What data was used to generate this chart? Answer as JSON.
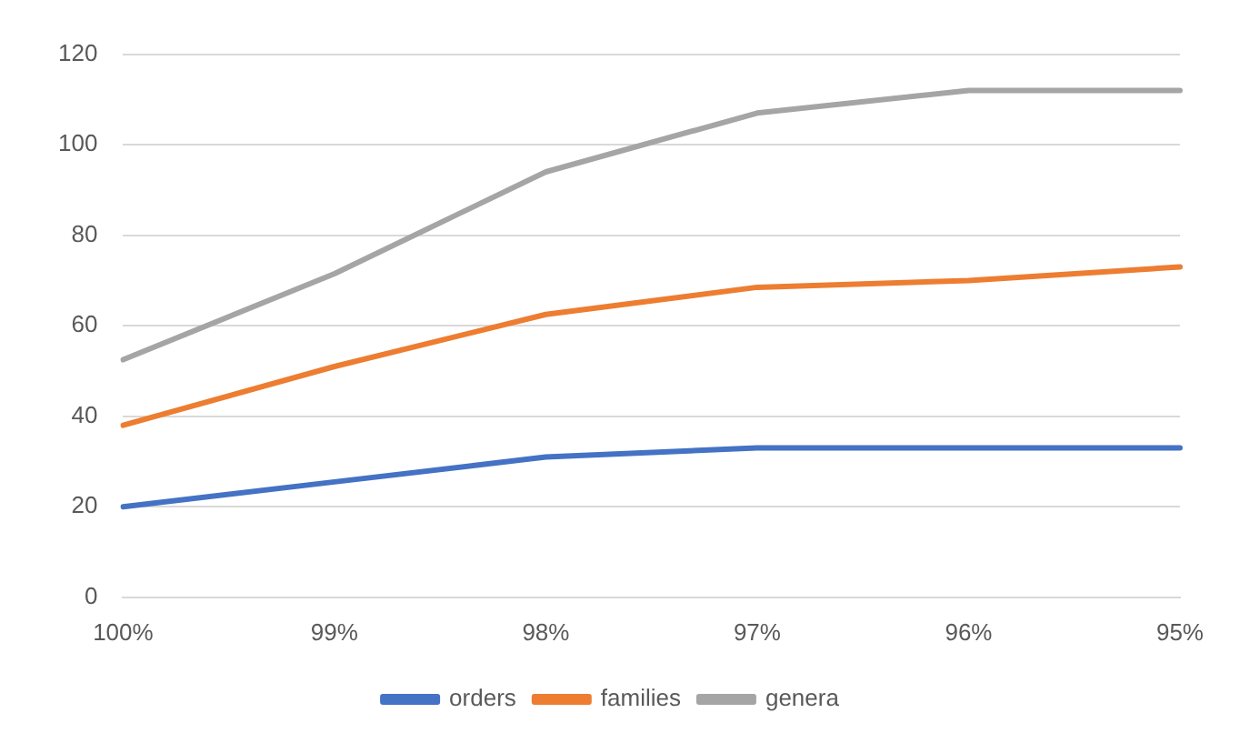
{
  "chart_data": {
    "type": "line",
    "categories": [
      "100%",
      "99%",
      "98%",
      "97%",
      "96%",
      "95%"
    ],
    "series": [
      {
        "name": "orders",
        "color": "#4472c4",
        "values": [
          20,
          25.5,
          31,
          33,
          33,
          33
        ]
      },
      {
        "name": "families",
        "color": "#ed7d31",
        "values": [
          38,
          51,
          62.5,
          68.5,
          70,
          73
        ]
      },
      {
        "name": "genera",
        "color": "#a5a5a5",
        "values": [
          52.5,
          71.5,
          94,
          107,
          112,
          112
        ]
      }
    ],
    "ylim": [
      0,
      120
    ],
    "yticks": [
      0,
      20,
      40,
      60,
      80,
      100,
      120
    ],
    "grid": "y",
    "legend": "bottom",
    "marker": "none",
    "line_style": "solid"
  }
}
